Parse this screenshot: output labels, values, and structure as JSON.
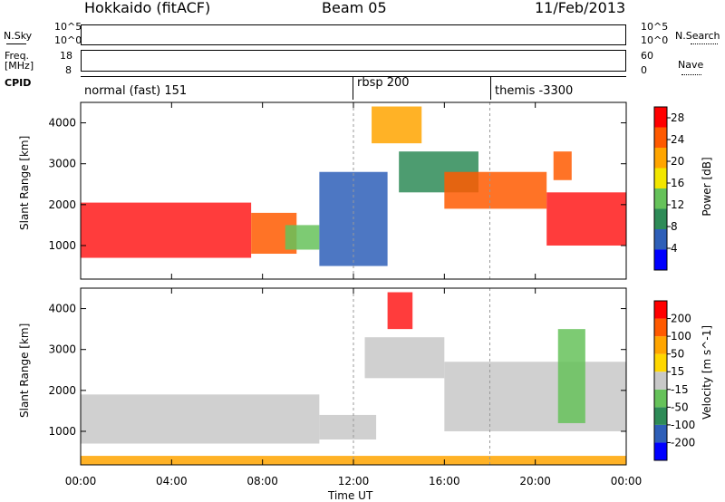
{
  "header": {
    "station": "Hokkaido (fitACF)",
    "beam": "Beam 05",
    "date": "11/Feb/2013"
  },
  "strip_nsky": {
    "left_label": "N.Sky",
    "right_label": "N.Search",
    "left_ticks": [
      "10^5",
      "10^0"
    ],
    "right_ticks": [
      "10^5",
      "10^0"
    ]
  },
  "strip_freq": {
    "left_label_top": "Freq.",
    "left_label_bottom": "[MHz]",
    "right_label": "Nave",
    "left_ticks": [
      "18",
      "8"
    ],
    "right_ticks": [
      "60",
      "0"
    ]
  },
  "cpid": {
    "label": "CPID",
    "segments": [
      {
        "name": "normal (fast) 151",
        "start_hour": 0
      },
      {
        "name": "rbsp 200",
        "start_hour": 12
      },
      {
        "name": "themis -3300",
        "start_hour": 18
      }
    ]
  },
  "chart_data": [
    {
      "type": "heatmap",
      "title": "",
      "xlabel": "Time UT",
      "ylabel": "Slant Range [km]",
      "xlim": [
        0,
        24
      ],
      "ylim": [
        180,
        4500
      ],
      "x_ticks": [
        "00:00",
        "04:00",
        "08:00",
        "12:00",
        "16:00",
        "20:00",
        "00:00"
      ],
      "y_ticks": [
        1000,
        2000,
        3000,
        4000
      ],
      "colorbar": {
        "label": "Power [dB]",
        "ticks": [
          4,
          8,
          12,
          16,
          20,
          24,
          28
        ],
        "range": [
          0,
          30
        ],
        "colors": [
          "#0000ff",
          "#2e5fb8",
          "#2e8b57",
          "#66c25a",
          "#f2e600",
          "#ffa500",
          "#ff5a00",
          "#ff0000"
        ]
      },
      "regions": [
        {
          "t0": 0.0,
          "t1": 7.5,
          "r0": 700,
          "r1": 2050,
          "color": "#ff1a1a"
        },
        {
          "t0": 7.5,
          "t1": 9.5,
          "r0": 800,
          "r1": 1800,
          "color": "#ff5a00"
        },
        {
          "t0": 9.0,
          "t1": 10.5,
          "r0": 900,
          "r1": 1500,
          "color": "#66c25a"
        },
        {
          "t0": 12.8,
          "t1": 15.0,
          "r0": 3500,
          "r1": 4400,
          "color": "#ffa500"
        },
        {
          "t0": 14.0,
          "t1": 17.5,
          "r0": 2300,
          "r1": 3300,
          "color": "#2e8b57"
        },
        {
          "t0": 16.0,
          "t1": 20.5,
          "r0": 1900,
          "r1": 2800,
          "color": "#ff5a00"
        },
        {
          "t0": 20.5,
          "t1": 24.0,
          "r0": 1000,
          "r1": 2300,
          "color": "#ff1a1a"
        },
        {
          "t0": 10.5,
          "t1": 13.5,
          "r0": 500,
          "r1": 2800,
          "color": "#2e5fb8"
        },
        {
          "t0": 20.8,
          "t1": 21.6,
          "r0": 2600,
          "r1": 3300,
          "color": "#ff5a00"
        }
      ]
    },
    {
      "type": "heatmap",
      "title": "",
      "xlabel": "Time UT",
      "ylabel": "Slant Range [km]",
      "xlim": [
        0,
        24
      ],
      "ylim": [
        180,
        4500
      ],
      "x_ticks": [
        "00:00",
        "04:00",
        "08:00",
        "12:00",
        "16:00",
        "20:00",
        "00:00"
      ],
      "y_ticks": [
        1000,
        2000,
        3000,
        4000
      ],
      "colorbar": {
        "label": "Velocity [m s^-1]",
        "ticks": [
          200,
          100,
          50,
          15,
          -15,
          -50,
          -100,
          -200
        ],
        "colors": [
          "#0000ff",
          "#2e5fb8",
          "#2e8b57",
          "#66c25a",
          "#c8c8c8",
          "#ffd700",
          "#ffa500",
          "#ff5a00",
          "#ff0000"
        ]
      },
      "regions": [
        {
          "t0": 0.0,
          "t1": 10.5,
          "r0": 700,
          "r1": 1900,
          "color": "#c8c8c8"
        },
        {
          "t0": 10.5,
          "t1": 13.0,
          "r0": 800,
          "r1": 1400,
          "color": "#c8c8c8"
        },
        {
          "t0": 12.5,
          "t1": 16.0,
          "r0": 2300,
          "r1": 3300,
          "color": "#c8c8c8"
        },
        {
          "t0": 16.0,
          "t1": 24.0,
          "r0": 1000,
          "r1": 2700,
          "color": "#c8c8c8"
        },
        {
          "t0": 13.5,
          "t1": 14.6,
          "r0": 3500,
          "r1": 4400,
          "color": "#ff1a1a"
        },
        {
          "t0": 21.0,
          "t1": 22.2,
          "r0": 1200,
          "r1": 3500,
          "color": "#66c25a"
        },
        {
          "t0": 0.0,
          "t1": 24.0,
          "r0": 180,
          "r1": 400,
          "color": "#ffa500"
        }
      ]
    }
  ]
}
